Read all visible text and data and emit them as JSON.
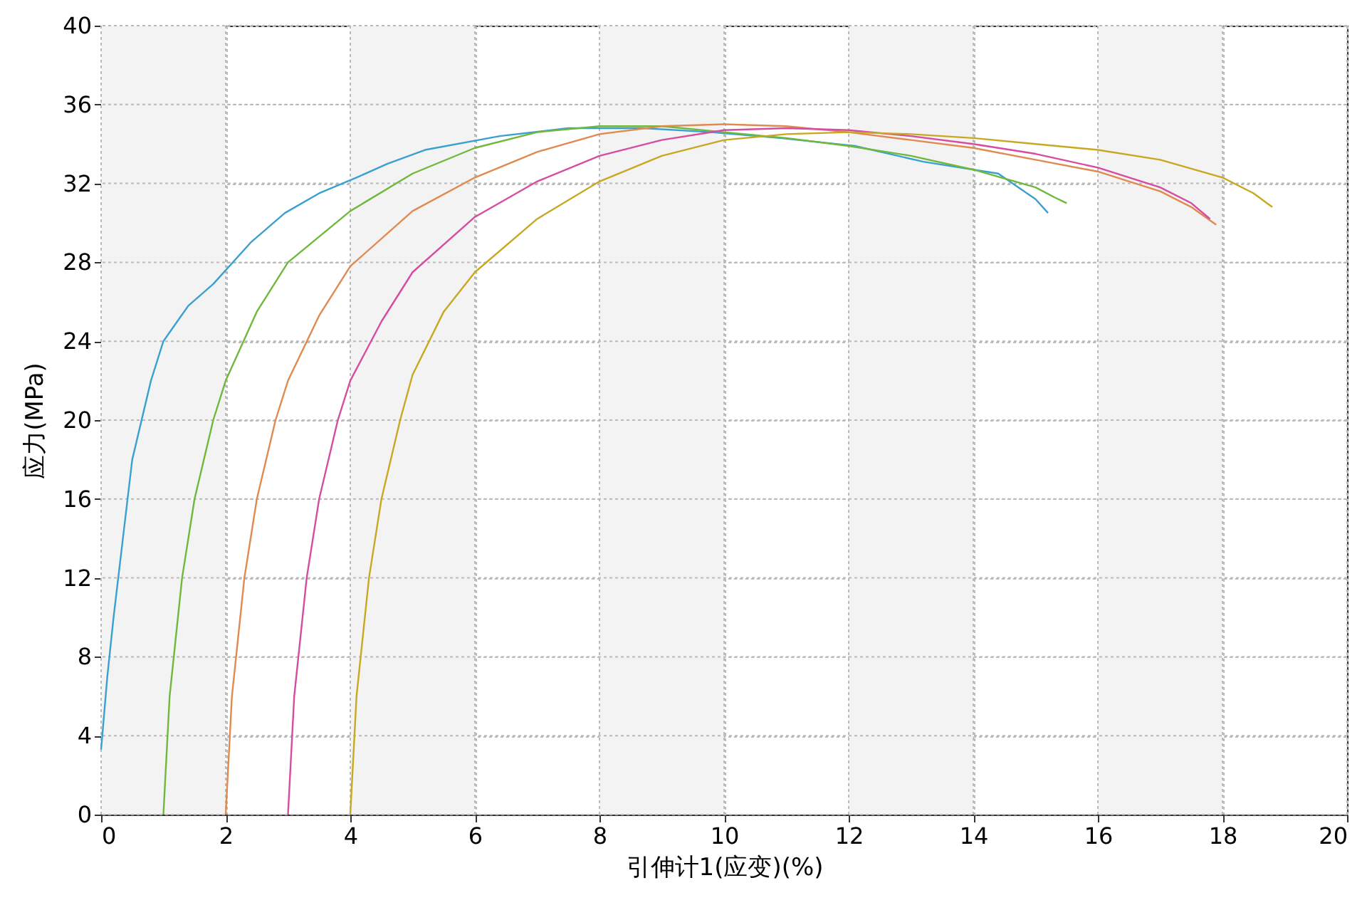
{
  "chart_data": {
    "type": "line",
    "xlabel": "引伸计1(应变)(%)",
    "ylabel": "应力(MPa)",
    "xlim": [
      0,
      20
    ],
    "ylim": [
      0,
      40
    ],
    "xticks": [
      0,
      2,
      4,
      6,
      8,
      10,
      12,
      14,
      16,
      18,
      20
    ],
    "yticks": [
      0,
      4,
      8,
      12,
      16,
      20,
      24,
      28,
      32,
      36,
      40
    ],
    "grid": true,
    "bands": [
      {
        "axis": "x",
        "from": 0,
        "to": 2,
        "color": "#f3f3f3"
      },
      {
        "axis": "x",
        "from": 4,
        "to": 6,
        "color": "#f3f3f3"
      },
      {
        "axis": "x",
        "from": 8,
        "to": 10,
        "color": "#f3f3f3"
      },
      {
        "axis": "x",
        "from": 12,
        "to": 14,
        "color": "#f3f3f3"
      },
      {
        "axis": "x",
        "from": 16,
        "to": 18,
        "color": "#f3f3f3"
      }
    ],
    "series": [
      {
        "color": "#3aa0d0",
        "x": [
          0,
          0.1,
          0.2,
          0.35,
          0.5,
          0.8,
          1,
          1.4,
          1.8,
          2.4,
          2.95,
          3.5,
          4.1,
          4.6,
          5.2,
          6.4,
          7.5,
          8.7,
          9.8,
          10.9,
          12.1,
          13.2,
          14.4,
          15,
          15.2
        ],
        "values": [
          3.3,
          7,
          10,
          14,
          18,
          22,
          24,
          25.8,
          26.9,
          29,
          30.5,
          31.5,
          32.3,
          33,
          33.7,
          34.4,
          34.8,
          34.8,
          34.6,
          34.3,
          33.9,
          33.1,
          32.5,
          31.2,
          30.5
        ]
      },
      {
        "color": "#70b83c",
        "x": [
          1,
          1.1,
          1.3,
          1.5,
          1.8,
          2,
          2.5,
          3,
          4,
          5,
          6,
          7,
          8,
          9,
          10,
          11,
          12,
          13,
          14,
          15,
          15.3,
          15.5
        ],
        "values": [
          0,
          6,
          12,
          16,
          20,
          22,
          25.5,
          28,
          30.6,
          32.5,
          33.8,
          34.6,
          34.9,
          34.9,
          34.6,
          34.3,
          33.9,
          33.4,
          32.7,
          31.8,
          31.3,
          31
        ]
      },
      {
        "color": "#e08a50",
        "x": [
          2,
          2.1,
          2.3,
          2.5,
          2.8,
          3,
          3.5,
          4,
          5,
          6,
          7,
          8,
          9,
          10,
          11,
          12,
          13,
          14,
          15,
          16,
          17,
          17.5,
          17.9
        ],
        "values": [
          0,
          6,
          12,
          16,
          20,
          22,
          25.3,
          27.8,
          30.6,
          32.3,
          33.6,
          34.5,
          34.9,
          35,
          34.9,
          34.6,
          34.2,
          33.8,
          33.2,
          32.6,
          31.6,
          30.8,
          29.9
        ]
      },
      {
        "color": "#d64ca0",
        "x": [
          3,
          3.1,
          3.3,
          3.5,
          3.8,
          4,
          4.5,
          5,
          6,
          7,
          8,
          9,
          10,
          11,
          12,
          13,
          14,
          15,
          16,
          17,
          17.5,
          17.8
        ],
        "values": [
          0,
          6,
          12,
          16,
          20,
          22,
          25,
          27.5,
          30.3,
          32.1,
          33.4,
          34.2,
          34.7,
          34.8,
          34.7,
          34.4,
          34,
          33.5,
          32.8,
          31.8,
          31,
          30.2
        ]
      },
      {
        "color": "#c8a820",
        "x": [
          4,
          4.1,
          4.3,
          4.5,
          4.8,
          5,
          5.5,
          6,
          7,
          8,
          9,
          10,
          11,
          12,
          13,
          14,
          15,
          16,
          17,
          18,
          18.5,
          18.8
        ],
        "values": [
          0,
          6,
          12,
          16,
          20,
          22.3,
          25.5,
          27.5,
          30.2,
          32.1,
          33.4,
          34.2,
          34.5,
          34.6,
          34.5,
          34.3,
          34,
          33.7,
          33.2,
          32.3,
          31.5,
          30.8
        ]
      }
    ]
  }
}
